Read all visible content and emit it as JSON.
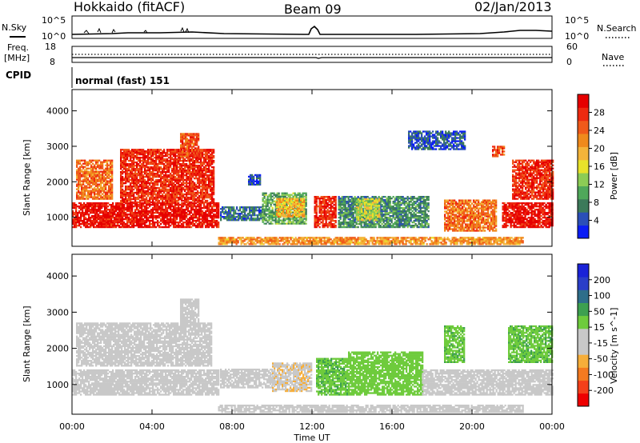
{
  "header": {
    "station": "Hokkaido (fitACF)",
    "beam": "Beam 09",
    "date": "02/Jan/2013"
  },
  "aux": {
    "nsky_label": "N.Sky",
    "nsearch_label": "N.Search",
    "noise_ticks": [
      "10^5",
      "10^0"
    ],
    "freq_label": "Freq.",
    "freq_unit": "[MHz]",
    "freq_ticks": [
      "18",
      "8"
    ],
    "nave_label": "Nave",
    "nave_ticks": [
      "60",
      "0"
    ],
    "cpid_label": "CPID",
    "cpid_value": "normal (fast) 151"
  },
  "colors": {
    "power": [
      "#0b1df5",
      "#2b4fb8",
      "#3c7a5a",
      "#4fa85a",
      "#8ccc55",
      "#e8e22a",
      "#f4b43a",
      "#f08a1c",
      "#f05a1a",
      "#ee2a10",
      "#e60000"
    ],
    "velocity": [
      "#ee0000",
      "#f4401a",
      "#f47a20",
      "#f6ae3a",
      "#c8c8c8",
      "#c8c8c8",
      "#6ecb3c",
      "#3da050",
      "#2e6e8a",
      "#2a3ec8",
      "#1a22d8"
    ]
  },
  "chart_data": [
    {
      "type": "heatmap",
      "name_panel": "power",
      "xlabel": "Time UT",
      "ylabel": "Slant Range [km]",
      "x_ticks": [
        "00:00",
        "04:00",
        "08:00",
        "12:00",
        "16:00",
        "20:00",
        "00:00"
      ],
      "xlim": [
        0,
        24
      ],
      "ylim": [
        180,
        4600
      ],
      "y_ticks": [
        1000,
        2000,
        3000,
        4000
      ],
      "colorbar_label": "Power [dB]",
      "colorbar_ticks": [
        "28",
        "24",
        "20",
        "16",
        "12",
        "8",
        "4"
      ],
      "colorbar_range": [
        0,
        30
      ],
      "regions": [
        {
          "t0": 0.0,
          "t1": 7.3,
          "r0": 700,
          "r1": 1400,
          "level": 28
        },
        {
          "t0": 0.2,
          "t1": 2.0,
          "r0": 1500,
          "r1": 2600,
          "level": 22
        },
        {
          "t0": 2.4,
          "t1": 7.1,
          "r0": 1400,
          "r1": 2900,
          "level": 26
        },
        {
          "t0": 5.4,
          "t1": 6.3,
          "r0": 2700,
          "r1": 3350,
          "level": 24
        },
        {
          "t0": 7.4,
          "t1": 9.5,
          "r0": 900,
          "r1": 1300,
          "level": 6
        },
        {
          "t0": 8.8,
          "t1": 9.4,
          "r0": 1900,
          "r1": 2200,
          "level": 4
        },
        {
          "t0": 9.5,
          "t1": 11.7,
          "r0": 800,
          "r1": 1700,
          "level": 10
        },
        {
          "t0": 10.2,
          "t1": 11.6,
          "r0": 1000,
          "r1": 1500,
          "level": 18
        },
        {
          "t0": 12.1,
          "t1": 13.2,
          "r0": 700,
          "r1": 1600,
          "level": 26
        },
        {
          "t0": 13.3,
          "t1": 17.8,
          "r0": 700,
          "r1": 1600,
          "level": 8
        },
        {
          "t0": 14.2,
          "t1": 15.4,
          "r0": 900,
          "r1": 1500,
          "level": 14
        },
        {
          "t0": 18.6,
          "t1": 21.2,
          "r0": 600,
          "r1": 1500,
          "level": 22
        },
        {
          "t0": 16.8,
          "t1": 19.6,
          "r0": 2900,
          "r1": 3400,
          "level": 4
        },
        {
          "t0": 21.5,
          "t1": 24.0,
          "r0": 700,
          "r1": 1400,
          "level": 28
        },
        {
          "t0": 22.0,
          "t1": 24.0,
          "r0": 1500,
          "r1": 2600,
          "level": 26
        },
        {
          "t0": 21.0,
          "t1": 21.6,
          "r0": 2700,
          "r1": 3000,
          "level": 24
        },
        {
          "t0": 7.3,
          "t1": 22.5,
          "r0": 220,
          "r1": 420,
          "level": 20
        }
      ]
    },
    {
      "type": "heatmap",
      "name_panel": "velocity",
      "xlabel": "Time UT",
      "ylabel": "Slant Range [km]",
      "x_ticks": [
        "00:00",
        "04:00",
        "08:00",
        "12:00",
        "16:00",
        "20:00",
        "00:00"
      ],
      "xlim": [
        0,
        24
      ],
      "ylim": [
        180,
        4600
      ],
      "y_ticks": [
        1000,
        2000,
        3000,
        4000
      ],
      "colorbar_label": "Velocity [m s^-1]",
      "colorbar_ticks": [
        "200",
        "100",
        "50",
        "15",
        "-15",
        "-50",
        "-100",
        "-200"
      ],
      "colorbar_range": [
        -250,
        250
      ],
      "regions": [
        {
          "t0": 0.0,
          "t1": 7.3,
          "r0": 700,
          "r1": 1400,
          "level": 0
        },
        {
          "t0": 0.2,
          "t1": 7.0,
          "r0": 1500,
          "r1": 2700,
          "level": 0
        },
        {
          "t0": 5.4,
          "t1": 6.3,
          "r0": 2700,
          "r1": 3350,
          "level": 0
        },
        {
          "t0": 7.4,
          "t1": 10.0,
          "r0": 900,
          "r1": 1400,
          "level": 0
        },
        {
          "t0": 10.0,
          "t1": 12.0,
          "r0": 800,
          "r1": 1600,
          "level": -60
        },
        {
          "t0": 12.2,
          "t1": 13.8,
          "r0": 700,
          "r1": 1700,
          "level": 60
        },
        {
          "t0": 13.8,
          "t1": 17.5,
          "r0": 700,
          "r1": 1900,
          "level": 40
        },
        {
          "t0": 17.5,
          "t1": 21.5,
          "r0": 700,
          "r1": 1400,
          "level": 0
        },
        {
          "t0": 18.6,
          "t1": 19.6,
          "r0": 1600,
          "r1": 2600,
          "level": 60
        },
        {
          "t0": 21.5,
          "t1": 24.0,
          "r0": 700,
          "r1": 1400,
          "level": 0
        },
        {
          "t0": 21.8,
          "t1": 24.0,
          "r0": 1600,
          "r1": 2600,
          "level": 60
        },
        {
          "t0": 7.3,
          "t1": 22.5,
          "r0": 220,
          "r1": 420,
          "level": -40
        }
      ]
    }
  ]
}
